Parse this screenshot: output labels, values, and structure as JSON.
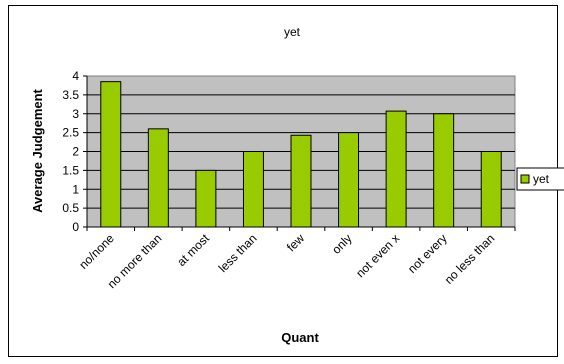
{
  "chart_data": {
    "type": "bar",
    "title": "yet",
    "xlabel": "Quant",
    "ylabel": "Average Judgement",
    "categories": [
      "no/none",
      "no more than",
      "at most",
      "less than",
      "few",
      "only",
      "not even x",
      "not every",
      "no less than"
    ],
    "series": [
      {
        "name": "yet",
        "values": [
          3.85,
          2.6,
          1.5,
          2.0,
          2.43,
          2.5,
          3.07,
          3.0,
          2.0
        ]
      }
    ],
    "ylim": [
      0,
      4
    ],
    "yticks": [
      "0",
      "0.5",
      "1",
      "1.5",
      "2",
      "2.5",
      "3",
      "3.5",
      "4"
    ],
    "grid": true,
    "legend_position": "right",
    "colors": {
      "bar": "#99cc00",
      "plot_bg": "#c0c0c0",
      "border": "#000000"
    }
  }
}
